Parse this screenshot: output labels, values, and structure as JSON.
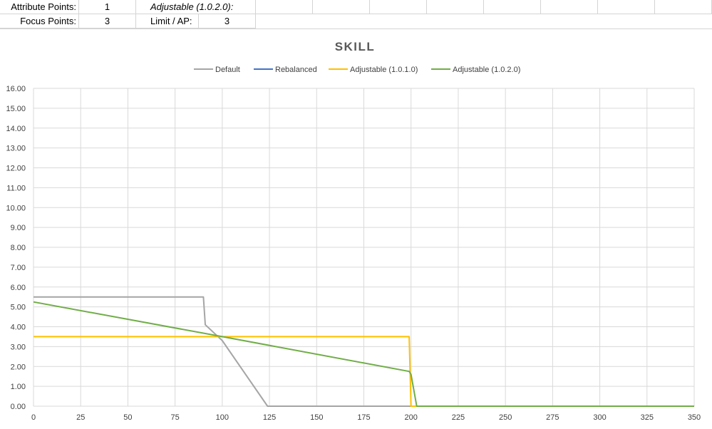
{
  "sheet": {
    "row1": {
      "label_a": "Attribute Points:",
      "value_a": "1",
      "label_b": "Adjustable (1.0.2.0):",
      "value_b": ""
    },
    "row2": {
      "label_a": "Focus Points:",
      "value_a": "3",
      "label_b": "Limit / AP:",
      "value_b": "3"
    }
  },
  "chart_data": {
    "type": "line",
    "title": "SKILL",
    "xlabel": "",
    "ylabel": "",
    "xlim": [
      0,
      350
    ],
    "ylim": [
      0,
      16
    ],
    "x_ticks": [
      "0",
      "25",
      "50",
      "75",
      "100",
      "125",
      "150",
      "175",
      "200",
      "225",
      "250",
      "275",
      "300",
      "325",
      "350"
    ],
    "y_ticks": [
      "0.00",
      "1.00",
      "2.00",
      "3.00",
      "4.00",
      "5.00",
      "6.00",
      "7.00",
      "8.00",
      "9.00",
      "10.00",
      "11.00",
      "12.00",
      "13.00",
      "14.00",
      "15.00",
      "16.00"
    ],
    "grid": true,
    "legend_position": "top",
    "series": [
      {
        "name": "Default",
        "color": "#a5a5a5",
        "points": [
          [
            0,
            5.5
          ],
          [
            90,
            5.5
          ],
          [
            91,
            4.1
          ],
          [
            100,
            3.3
          ],
          [
            124,
            0
          ],
          [
            350,
            0
          ]
        ]
      },
      {
        "name": "Rebalanced",
        "color": "#4472c4",
        "points": []
      },
      {
        "name": "Adjustable (1.0.1.0)",
        "color": "#ffc000",
        "points": [
          [
            0,
            3.5
          ],
          [
            199,
            3.5
          ],
          [
            200,
            0
          ],
          [
            350,
            0
          ]
        ]
      },
      {
        "name": "Adjustable (1.0.2.0)",
        "color": "#70ad47",
        "points": [
          [
            0,
            5.25
          ],
          [
            100,
            3.5
          ],
          [
            199,
            1.75
          ],
          [
            200,
            1.6
          ],
          [
            203,
            0
          ],
          [
            350,
            0
          ]
        ]
      }
    ]
  }
}
